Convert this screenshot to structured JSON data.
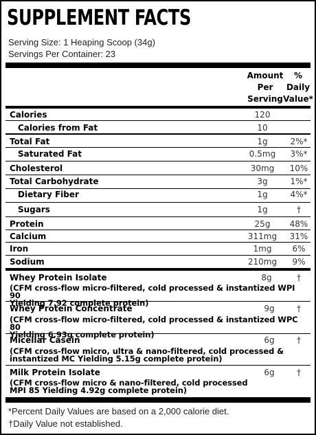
{
  "title": "SUPPLEMENT FACTS",
  "serving_size": "Serving Size: 1 Heaping Scoop (34g)",
  "servings_per_container": "Servings Per Container: 23",
  "headers": {
    "amount_line1": "Amount",
    "amount_line2": "Per",
    "amount_line3": "Serving",
    "dv_line1": "%",
    "dv_line2": "Daily",
    "dv_line3": "Value*"
  },
  "nutrients": [
    {
      "name": "Calories",
      "amount": "120",
      "dv": ""
    },
    {
      "name": "Calories from Fat",
      "amount": "10",
      "dv": ""
    },
    {
      "name": "Total Fat",
      "amount": "1g",
      "dv": "2%*"
    },
    {
      "name": "Saturated Fat",
      "amount": "0.5mg",
      "dv": "3%*"
    },
    {
      "name": "Cholesterol",
      "amount": "30mg",
      "dv": "10%"
    },
    {
      "name": "Total Carbohydrate",
      "amount": "3g",
      "dv": "1%*"
    },
    {
      "name": "Dietary Fiber",
      "amount": "1g",
      "dv": "4%*"
    },
    {
      "name": "Sugars",
      "amount": "1g",
      "dv": "†"
    },
    {
      "name": "Protein",
      "amount": "25g",
      "dv": "48%"
    },
    {
      "name": "Calcium",
      "amount": "311mg",
      "dv": "31%"
    },
    {
      "name": "Iron",
      "amount": "1mg",
      "dv": "6%"
    },
    {
      "name": "Sodium",
      "amount": "210mg",
      "dv": "9%"
    }
  ],
  "proteins": [
    {
      "name": "Whey Protein Isolate",
      "amount": "8g",
      "dv": "†",
      "desc_line1": "(CFM cross-flow micro-filtered, cold processed & instantized WPI 90",
      "desc_line2": "Yielding 7.92 complete protein)"
    },
    {
      "name": "Whey Protein Concentrate",
      "amount": "9g",
      "dv": "†",
      "desc_line1": "(CFM cross-flow micro-filtered, cold processed & instantized WPC 80",
      "desc_line2": "Yielding 6.93g complete protein)"
    },
    {
      "name": "Micellar Casein",
      "amount": "6g",
      "dv": "†",
      "desc_line1": "(CFM cross-flow micro, ultra & nano-filtered, cold processed &",
      "desc_line2": "instantized MC Yielding 5.15g complete protein)"
    },
    {
      "name": "Milk Protein Isolate",
      "amount": "6g",
      "dv": "†",
      "desc_line1": "(CFM cross-flow micro & nano-filtered, cold processed",
      "desc_line2": "MPI 85 Yielding 4.92g complete protein)"
    }
  ],
  "footnote_dv": "*Percent Daily Values are based on a 2,000 calorie diet.",
  "footnote_dagger": "†Daily Value not established."
}
